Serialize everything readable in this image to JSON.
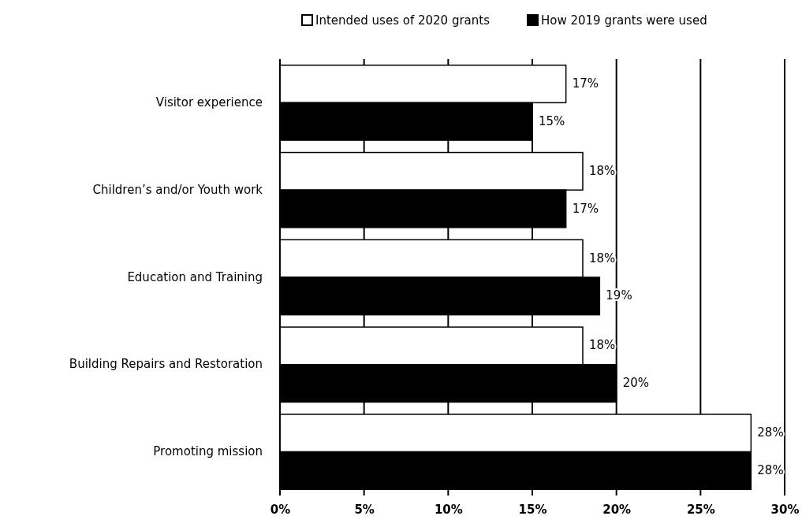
{
  "chart_data": {
    "type": "bar",
    "orientation": "horizontal",
    "categories": [
      "Visitor experience",
      "Children’s and/or Youth work",
      "Education and Training",
      "Building Repairs and Restoration",
      "Promoting mission"
    ],
    "series": [
      {
        "name": "Intended uses of 2020 grants",
        "color": "#ffffff",
        "values": [
          17,
          18,
          18,
          18,
          28
        ],
        "value_labels": [
          "17%",
          "18%",
          "18%",
          "18%",
          "28%"
        ]
      },
      {
        "name": "How 2019 grants were used",
        "color": "#000000",
        "values": [
          15,
          17,
          19,
          20,
          28
        ],
        "value_labels": [
          "15%",
          "17%",
          "19%",
          "20%",
          "28%"
        ]
      }
    ],
    "xlim": [
      0,
      30
    ],
    "xticks": [
      {
        "value": 0,
        "label": "0%"
      },
      {
        "value": 5,
        "label": "5%"
      },
      {
        "value": 10,
        "label": "10%"
      },
      {
        "value": 15,
        "label": "15%"
      },
      {
        "value": 20,
        "label": "20%"
      },
      {
        "value": 25,
        "label": "25%"
      },
      {
        "value": 30,
        "label": "30%"
      }
    ],
    "grid": "x",
    "legend": "top"
  }
}
